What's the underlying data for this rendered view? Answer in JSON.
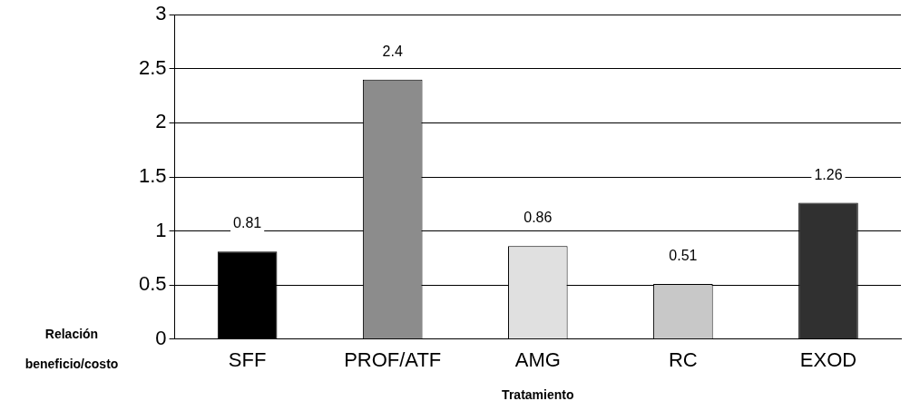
{
  "chart_data": {
    "type": "bar",
    "xlabel": "Tratamiento",
    "ylabel": "Relación beneficio/costo",
    "categories": [
      "SFF",
      "PROF/ATF",
      "AMG",
      "RC",
      "EXOD"
    ],
    "values": [
      0.81,
      2.4,
      0.86,
      0.51,
      1.26
    ],
    "colors": [
      "#000000",
      "#8c8c8c",
      "#e0e0e0",
      "#c8c8c8",
      "#303030"
    ],
    "ylim": [
      0,
      3
    ],
    "yticks": [
      0,
      0.5,
      1,
      1.5,
      2,
      2.5,
      3
    ],
    "grid": "y",
    "data_labels": true,
    "legend": false
  }
}
